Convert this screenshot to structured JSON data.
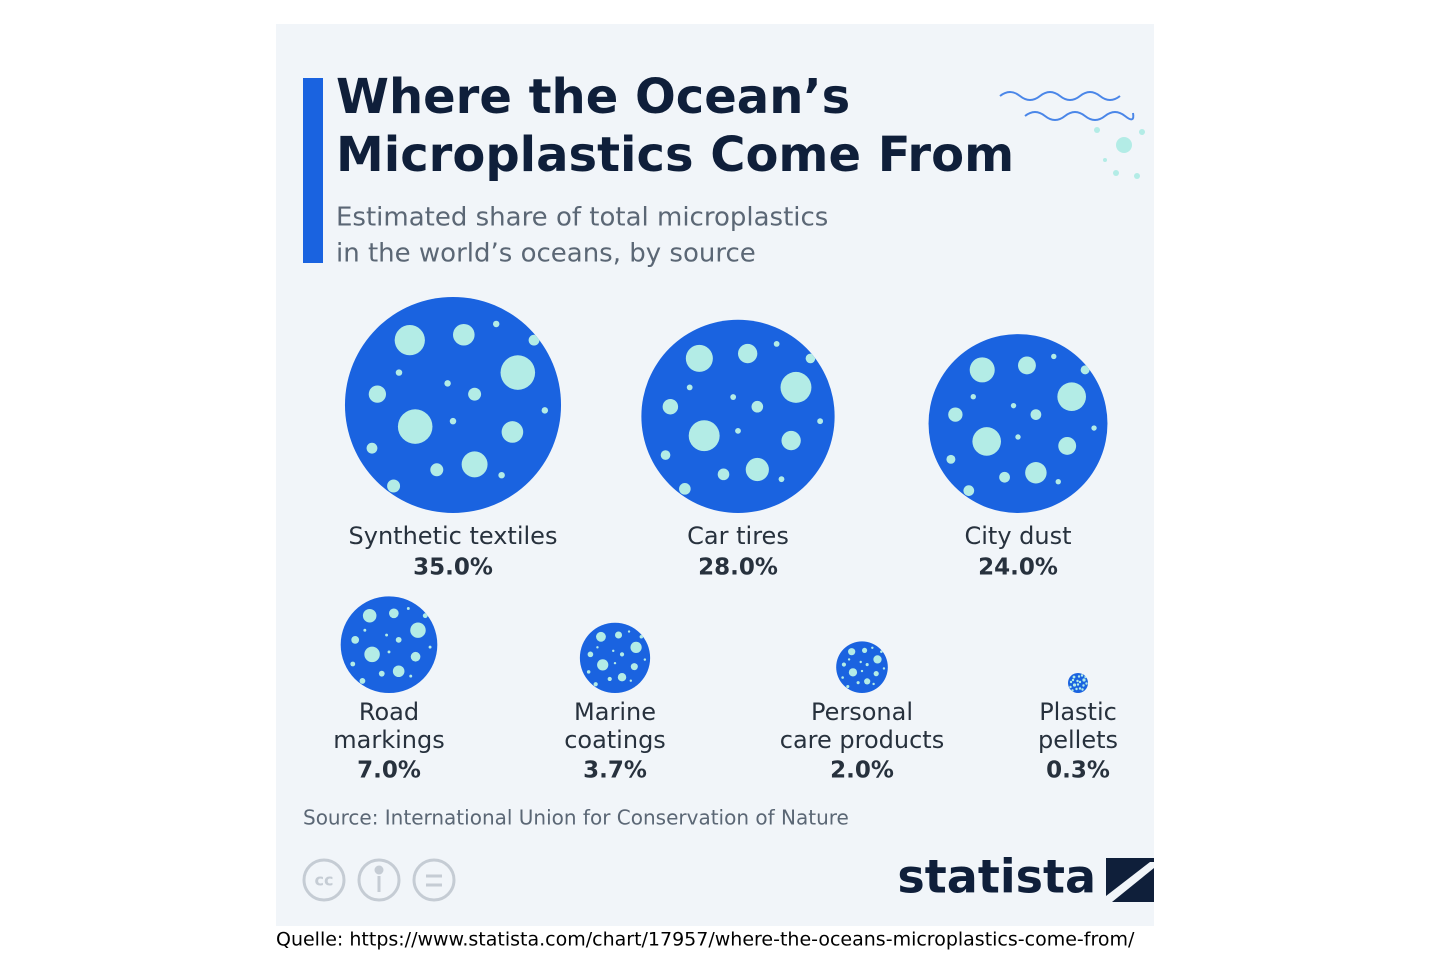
{
  "chart_data": {
    "type": "bubble",
    "title": [
      "Where the Ocean’s",
      "Microplastics Come From"
    ],
    "subtitle": [
      "Estimated share of total microplastics",
      "in the world’s oceans, by source"
    ],
    "categories": [
      "Synthetic textiles",
      "Car tires",
      "City dust",
      "Road markings",
      "Marine coatings",
      "Personal care products",
      "Plastic pellets"
    ],
    "values": [
      35.0,
      28.0,
      24.0,
      7.0,
      3.7,
      2.0,
      0.3
    ],
    "value_labels": [
      "35.0%",
      "28.0%",
      "24.0%",
      "7.0%",
      "3.7%",
      "2.0%",
      "0.3%"
    ],
    "color": "#1a63e0",
    "dot_color": "#b3ece6",
    "source": "Source: International Union for Conservation of Nature",
    "brand": "statista"
  },
  "footer": "Quelle: https://www.statista.com/chart/17957/where-the-oceans-microplastics-come-from/"
}
